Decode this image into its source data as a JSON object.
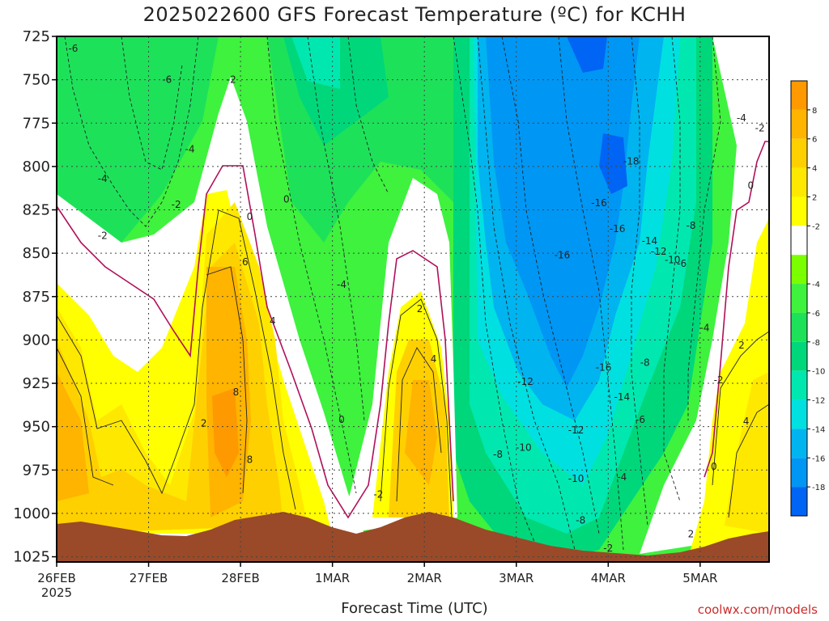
{
  "title": "2025022600 GFS Forecast Temperature (ºC) for KCHH",
  "x_axis_title": "Forecast Time (UTC)",
  "credit": "coolwx.com/models",
  "chart_data": {
    "type": "contour",
    "variable": "Temperature",
    "units": "ºC",
    "y_axis": {
      "quantity": "pressure (hPa)",
      "ticks": [
        725,
        750,
        775,
        800,
        825,
        850,
        875,
        900,
        925,
        950,
        975,
        1000,
        1025
      ],
      "range": [
        725,
        1028
      ],
      "inverted": true
    },
    "x_axis": {
      "ticks": [
        "26FEB",
        "27FEB",
        "28FEB",
        "1MAR",
        "2MAR",
        "3MAR",
        "4MAR",
        "5MAR"
      ],
      "start_year_label": "2025",
      "range_days": [
        0,
        7.75
      ]
    },
    "grid": "dotted",
    "contour_interval": 2,
    "colorbar": {
      "position": "right",
      "ticks": [
        8,
        6,
        4,
        2,
        -2,
        -4,
        -6,
        -8,
        -10,
        -12,
        -14,
        -16,
        -18
      ],
      "bands": [
        {
          "range": "> 8",
          "color": "#ff9900"
        },
        {
          "range": "6 to 8",
          "color": "#ffb400"
        },
        {
          "range": "4 to 6",
          "color": "#ffd000"
        },
        {
          "range": "2 to 4",
          "color": "#ffe800"
        },
        {
          "range": "0 to 2",
          "color": "#ffff00"
        },
        {
          "range": "-2 to 0 and 0 to 2 (white)",
          "color": "#ffffff"
        },
        {
          "range": "-4 to -2",
          "color": "#7bff00"
        },
        {
          "range": "-6 to -4",
          "color": "#3ef23e"
        },
        {
          "range": "-8 to -6",
          "color": "#1ee15a"
        },
        {
          "range": "-10 to -8",
          "color": "#00d77a"
        },
        {
          "range": "-12 to -10",
          "color": "#00e8b0"
        },
        {
          "range": "-14 to -12",
          "color": "#00e0e0"
        },
        {
          "range": "-16 to -14",
          "color": "#00b4f0"
        },
        {
          "range": "-18 to -16",
          "color": "#0096f4"
        },
        {
          "range": "< -18",
          "color": "#0064f4"
        }
      ]
    },
    "terrain_color": "#9a4a28",
    "freezing_line_color": "#b0105a",
    "contour_labels": [
      {
        "value": "-6",
        "day": 0.18,
        "p": 732
      },
      {
        "value": "-6",
        "day": 1.2,
        "p": 750
      },
      {
        "value": "-2",
        "day": 1.9,
        "p": 750
      },
      {
        "value": "-4",
        "day": 1.45,
        "p": 790
      },
      {
        "value": "-4",
        "day": 0.5,
        "p": 807
      },
      {
        "value": "-2",
        "day": 1.3,
        "p": 822
      },
      {
        "value": "-2",
        "day": 0.5,
        "p": 840
      },
      {
        "value": "0",
        "day": 2.1,
        "p": 829
      },
      {
        "value": "0",
        "day": 2.5,
        "p": 819
      },
      {
        "value": "6",
        "day": 2.05,
        "p": 855
      },
      {
        "value": "4",
        "day": 2.35,
        "p": 889
      },
      {
        "value": "-4",
        "day": 3.1,
        "p": 868
      },
      {
        "value": "8",
        "day": 1.95,
        "p": 930
      },
      {
        "value": "8",
        "day": 2.1,
        "p": 969
      },
      {
        "value": "2",
        "day": 1.6,
        "p": 948
      },
      {
        "value": "0",
        "day": 3.1,
        "p": 946
      },
      {
        "value": "-2",
        "day": 3.5,
        "p": 989
      },
      {
        "value": "2",
        "day": 3.95,
        "p": 882
      },
      {
        "value": "4",
        "day": 4.1,
        "p": 911
      },
      {
        "value": "-12",
        "day": 5.1,
        "p": 924
      },
      {
        "value": "-10",
        "day": 5.08,
        "p": 962
      },
      {
        "value": "-8",
        "day": 4.8,
        "p": 966
      },
      {
        "value": "-16",
        "day": 5.5,
        "p": 851
      },
      {
        "value": "-16",
        "day": 5.9,
        "p": 821
      },
      {
        "value": "-16",
        "day": 6.1,
        "p": 836
      },
      {
        "value": "-18",
        "day": 6.25,
        "p": 797
      },
      {
        "value": "-14",
        "day": 6.15,
        "p": 933
      },
      {
        "value": "-16",
        "day": 5.95,
        "p": 916
      },
      {
        "value": "-14",
        "day": 6.45,
        "p": 843
      },
      {
        "value": "-12",
        "day": 6.55,
        "p": 849
      },
      {
        "value": "-10",
        "day": 6.7,
        "p": 854
      },
      {
        "value": "-8",
        "day": 6.9,
        "p": 834
      },
      {
        "value": "-6",
        "day": 6.8,
        "p": 856
      },
      {
        "value": "-4",
        "day": 7.45,
        "p": 772
      },
      {
        "value": "-2",
        "day": 7.65,
        "p": 778
      },
      {
        "value": "0",
        "day": 7.55,
        "p": 811
      },
      {
        "value": "-4",
        "day": 7.05,
        "p": 893
      },
      {
        "value": "-2",
        "day": 7.2,
        "p": 923
      },
      {
        "value": "2",
        "day": 7.45,
        "p": 903
      },
      {
        "value": "-8",
        "day": 6.4,
        "p": 913
      },
      {
        "value": "-6",
        "day": 6.35,
        "p": 946
      },
      {
        "value": "-12",
        "day": 5.65,
        "p": 952
      },
      {
        "value": "-10",
        "day": 5.65,
        "p": 980
      },
      {
        "value": "-8",
        "day": 5.7,
        "p": 1004
      },
      {
        "value": "-4",
        "day": 6.15,
        "p": 979
      },
      {
        "value": "-2",
        "day": 6.0,
        "p": 1020
      },
      {
        "value": "0",
        "day": 7.15,
        "p": 973
      },
      {
        "value": "4",
        "day": 7.5,
        "p": 947
      },
      {
        "value": "2",
        "day": 6.9,
        "p": 1012
      }
    ]
  }
}
